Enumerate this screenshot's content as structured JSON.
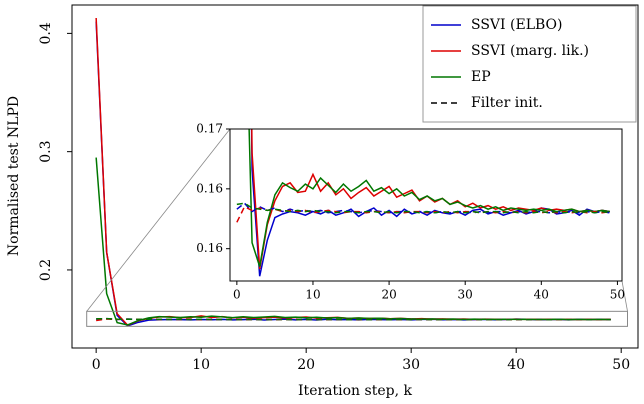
{
  "chart_data": {
    "type": "line",
    "xlabel": "Iteration step, k",
    "ylabel": "Normalised test NLPD",
    "xlim": [
      -2.3,
      51.6
    ],
    "ylim": [
      0.134,
      0.424
    ],
    "xticks": [
      0,
      10,
      20,
      30,
      40,
      50
    ],
    "yticks": [
      0.2,
      0.3,
      0.4
    ],
    "legend": "upper right",
    "x": [
      0,
      1,
      2,
      3,
      4,
      5,
      6,
      7,
      8,
      9,
      10,
      11,
      12,
      13,
      14,
      15,
      16,
      17,
      18,
      19,
      20,
      21,
      22,
      23,
      24,
      25,
      26,
      27,
      28,
      29,
      30,
      31,
      32,
      33,
      34,
      35,
      36,
      37,
      38,
      39,
      40,
      41,
      42,
      43,
      44,
      45,
      46,
      47,
      48,
      49
    ],
    "series": [
      {
        "name": "SSVI (ELBO)",
        "color": "#0000cc",
        "values": [
          0.41,
          0.215,
          0.1616,
          0.1527,
          0.1557,
          0.1576,
          0.1579,
          0.1581,
          0.158,
          0.1578,
          0.1581,
          0.1579,
          0.1582,
          0.1578,
          0.158,
          0.1583,
          0.1577,
          0.1581,
          0.1584,
          0.1578,
          0.1582,
          0.1577,
          0.1583,
          0.1579,
          0.1581,
          0.1578,
          0.1582,
          0.158,
          0.1579,
          0.1581,
          0.1578,
          0.1582,
          0.1583,
          0.1579,
          0.1581,
          0.1578,
          0.158,
          0.1582,
          0.1579,
          0.1581,
          0.1584,
          0.1583,
          0.1579,
          0.158,
          0.1582,
          0.1578,
          0.1583,
          0.1581,
          0.1582,
          0.1581
        ]
      },
      {
        "name": "SSVI (marg. lik.)",
        "color": "#dd0000",
        "values": [
          0.413,
          0.215,
          0.163,
          0.1533,
          0.157,
          0.159,
          0.1602,
          0.1605,
          0.1597,
          0.1598,
          0.1612,
          0.1598,
          0.1605,
          0.1595,
          0.16,
          0.1592,
          0.1597,
          0.1601,
          0.1594,
          0.1598,
          0.1602,
          0.1593,
          0.1596,
          0.1599,
          0.159,
          0.1594,
          0.1589,
          0.1592,
          0.1587,
          0.159,
          0.1585,
          0.1588,
          0.1584,
          0.1586,
          0.1583,
          0.1585,
          0.1582,
          0.1584,
          0.1583,
          0.1582,
          0.1584,
          0.1582,
          0.1583,
          0.1582,
          0.1583,
          0.1581,
          0.1582,
          0.1581,
          0.1582,
          0.1581
        ]
      },
      {
        "name": "EP",
        "color": "#007700",
        "values": [
          0.295,
          0.18,
          0.1555,
          0.1535,
          0.1572,
          0.1595,
          0.1605,
          0.1601,
          0.1598,
          0.1604,
          0.16,
          0.1609,
          0.1603,
          0.1597,
          0.1604,
          0.1598,
          0.1602,
          0.1607,
          0.1598,
          0.1601,
          0.1596,
          0.16,
          0.1594,
          0.1597,
          0.1591,
          0.1594,
          0.159,
          0.1592,
          0.1587,
          0.1589,
          0.1586,
          0.1584,
          0.1586,
          0.1583,
          0.1585,
          0.1582,
          0.1584,
          0.1583,
          0.1582,
          0.1583,
          0.1582,
          0.1583,
          0.1581,
          0.1582,
          0.1583,
          0.1581,
          0.1582,
          0.1581,
          0.1582,
          0.1581
        ]
      },
      {
        "color": "#0000cc",
        "dashed": true,
        "values": [
          0.1583,
          0.1588,
          0.1581,
          0.1585,
          0.1582,
          0.1584,
          0.1581,
          0.1583,
          0.1581,
          0.1582,
          0.1581,
          0.1582,
          0.158,
          0.1581,
          0.1582,
          0.1581,
          0.158,
          0.1581,
          0.1582,
          0.1581,
          0.158,
          0.1581,
          0.1581,
          0.158,
          0.1581,
          0.1581,
          0.158,
          0.1581,
          0.158,
          0.1581,
          0.1581,
          0.158,
          0.1581,
          0.158,
          0.1581,
          0.1581,
          0.158,
          0.1581,
          0.158,
          0.1581,
          0.1581,
          0.158,
          0.1581,
          0.158,
          0.1581,
          0.158,
          0.1581,
          0.158,
          0.1581,
          0.158
        ]
      },
      {
        "color": "#dd0000",
        "dashed": true,
        "values": [
          0.1572,
          0.1585,
          0.1582,
          0.1584,
          0.1582,
          0.1583,
          0.1581,
          0.1582,
          0.1581,
          0.1582,
          0.158,
          0.1581,
          0.1582,
          0.1581,
          0.158,
          0.1581,
          0.1581,
          0.158,
          0.1581,
          0.1581,
          0.158,
          0.1581,
          0.158,
          0.1581,
          0.1581,
          0.158,
          0.1581,
          0.158,
          0.1581,
          0.158,
          0.1581,
          0.1581,
          0.158,
          0.1581,
          0.158,
          0.1581,
          0.158,
          0.1581,
          0.158,
          0.1581,
          0.158,
          0.1581,
          0.158,
          0.1581,
          0.158,
          0.1581,
          0.158,
          0.1581,
          0.158,
          0.1581
        ]
      },
      {
        "color": "#007700",
        "dashed": true,
        "values": [
          0.1587,
          0.1588,
          0.1584,
          0.1583,
          0.1582,
          0.1583,
          0.1582,
          0.1581,
          0.1582,
          0.1581,
          0.1582,
          0.1581,
          0.1581,
          0.158,
          0.1581,
          0.1581,
          0.158,
          0.1581,
          0.1581,
          0.158,
          0.1581,
          0.158,
          0.1581,
          0.1581,
          0.158,
          0.1581,
          0.158,
          0.1581,
          0.158,
          0.1581,
          0.158,
          0.1581,
          0.158,
          0.1581,
          0.1581,
          0.158,
          0.1581,
          0.158,
          0.1581,
          0.158,
          0.1581,
          0.158,
          0.1581,
          0.158,
          0.1581,
          0.158,
          0.1581,
          0.158,
          0.1581,
          0.158
        ]
      }
    ],
    "legend_extra": {
      "name": "Filter init.",
      "color": "#000000",
      "dashed": true
    },
    "inset": {
      "xlim": [
        -0.9,
        50.6
      ],
      "ylim": [
        0.1523,
        0.165
      ],
      "xticks": [
        0,
        10,
        20,
        30,
        40,
        50
      ],
      "yticks": [
        {
          "value": 0.165,
          "label": "0.17"
        },
        {
          "value": 0.16,
          "label": "0.16"
        },
        {
          "value": 0.155,
          "label": "0.16"
        }
      ]
    }
  }
}
